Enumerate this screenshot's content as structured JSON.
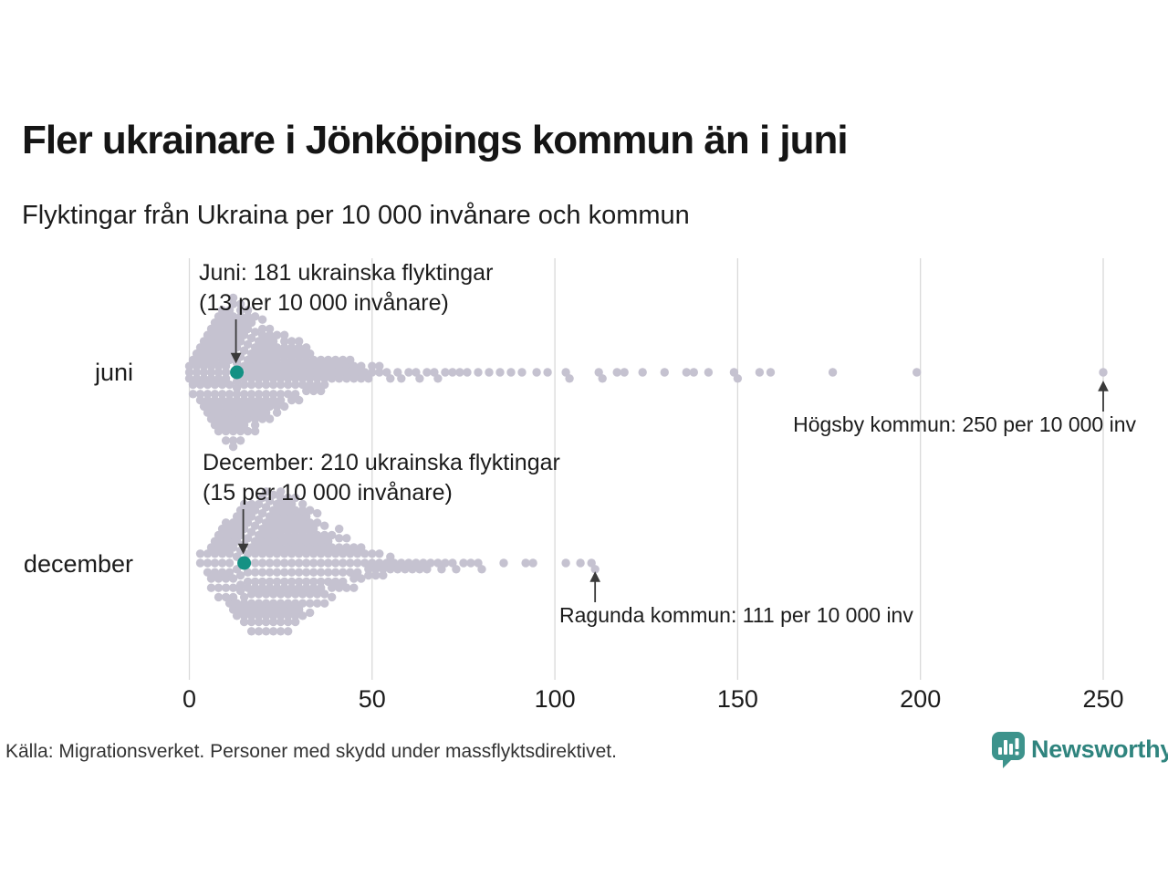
{
  "header": {
    "title": "Fler ukrainare i Jönköpings kommun än i juni",
    "subtitle": "Flyktingar från Ukraina per 10 000 invånare och kommun"
  },
  "chart_data": {
    "type": "beeswarm",
    "unit": "flyktingar per 10 000 invånare",
    "xlim": [
      0,
      250
    ],
    "x_ticks": [
      0,
      50,
      100,
      150,
      200,
      250
    ],
    "grid": true,
    "rows": [
      {
        "label": "juni",
        "points_value_count": [
          [
            0,
            3
          ],
          [
            1,
            3
          ],
          [
            2,
            4
          ],
          [
            3,
            5
          ],
          [
            4,
            6
          ],
          [
            5,
            7
          ],
          [
            6,
            8
          ],
          [
            7,
            9
          ],
          [
            8,
            10
          ],
          [
            9,
            10
          ],
          [
            10,
            11
          ],
          [
            11,
            10
          ],
          [
            12,
            11
          ],
          [
            13,
            10
          ],
          [
            14,
            10
          ],
          [
            15,
            10
          ],
          [
            16,
            9
          ],
          [
            17,
            9
          ],
          [
            18,
            9
          ],
          [
            19,
            8
          ],
          [
            20,
            8
          ],
          [
            21,
            8
          ],
          [
            22,
            7
          ],
          [
            23,
            7
          ],
          [
            24,
            6
          ],
          [
            25,
            6
          ],
          [
            26,
            6
          ],
          [
            27,
            5
          ],
          [
            28,
            5
          ],
          [
            29,
            5
          ],
          [
            30,
            5
          ],
          [
            31,
            4
          ],
          [
            32,
            4
          ],
          [
            33,
            4
          ],
          [
            34,
            3
          ],
          [
            35,
            3
          ],
          [
            36,
            3
          ],
          [
            37,
            3
          ],
          [
            38,
            2
          ],
          [
            39,
            2
          ],
          [
            40,
            2
          ],
          [
            41,
            2
          ],
          [
            42,
            2
          ],
          [
            43,
            2
          ],
          [
            44,
            2
          ],
          [
            45,
            2
          ],
          [
            46,
            1
          ],
          [
            47,
            2
          ],
          [
            48,
            1
          ],
          [
            49,
            1
          ],
          [
            50,
            2
          ],
          [
            52,
            2
          ],
          [
            54,
            1
          ],
          [
            55,
            1
          ],
          [
            57,
            1
          ],
          [
            58,
            1
          ],
          [
            60,
            1
          ],
          [
            62,
            1
          ],
          [
            63,
            1
          ],
          [
            65,
            1
          ],
          [
            67,
            1
          ],
          [
            68,
            1
          ],
          [
            70,
            1
          ],
          [
            72,
            1
          ],
          [
            74,
            1
          ],
          [
            76,
            1
          ],
          [
            79,
            1
          ],
          [
            82,
            1
          ],
          [
            85,
            1
          ],
          [
            88,
            1
          ],
          [
            91,
            1
          ],
          [
            95,
            1
          ],
          [
            98,
            1
          ],
          [
            103,
            1
          ],
          [
            104,
            1
          ],
          [
            112,
            1
          ],
          [
            113,
            1
          ],
          [
            117,
            1
          ],
          [
            119,
            1
          ],
          [
            124,
            1
          ],
          [
            130,
            1
          ],
          [
            136,
            1
          ],
          [
            138,
            1
          ],
          [
            142,
            1
          ],
          [
            149,
            1
          ],
          [
            150,
            1
          ],
          [
            156,
            1
          ],
          [
            159,
            1
          ],
          [
            176,
            1
          ],
          [
            199,
            1
          ],
          [
            250,
            1
          ]
        ],
        "highlight": {
          "kommun": "Jönköping",
          "value": 13,
          "refugees": 181,
          "label_lines": [
            "Juni: 181 ukrainska flyktingar",
            "(13 per 10 000 invånare)"
          ]
        },
        "extreme": {
          "kommun": "Högsby",
          "value": 250,
          "label": "Högsby kommun: 250 per 10 000 inv"
        }
      },
      {
        "label": "december",
        "points_value_count": [
          [
            3,
            2
          ],
          [
            5,
            3
          ],
          [
            6,
            3
          ],
          [
            7,
            4
          ],
          [
            8,
            5
          ],
          [
            9,
            5
          ],
          [
            10,
            6
          ],
          [
            11,
            6
          ],
          [
            12,
            7
          ],
          [
            13,
            7
          ],
          [
            14,
            8
          ],
          [
            15,
            8
          ],
          [
            16,
            8
          ],
          [
            17,
            9
          ],
          [
            18,
            9
          ],
          [
            19,
            9
          ],
          [
            20,
            10
          ],
          [
            21,
            10
          ],
          [
            22,
            10
          ],
          [
            23,
            10
          ],
          [
            24,
            10
          ],
          [
            25,
            11
          ],
          [
            26,
            10
          ],
          [
            27,
            10
          ],
          [
            28,
            10
          ],
          [
            29,
            9
          ],
          [
            30,
            9
          ],
          [
            31,
            8
          ],
          [
            32,
            8
          ],
          [
            33,
            7
          ],
          [
            34,
            7
          ],
          [
            35,
            6
          ],
          [
            36,
            6
          ],
          [
            37,
            5
          ],
          [
            38,
            5
          ],
          [
            39,
            4
          ],
          [
            40,
            4
          ],
          [
            41,
            4
          ],
          [
            42,
            4
          ],
          [
            43,
            3
          ],
          [
            44,
            3
          ],
          [
            45,
            3
          ],
          [
            46,
            3
          ],
          [
            47,
            2
          ],
          [
            48,
            2
          ],
          [
            49,
            2
          ],
          [
            50,
            2
          ],
          [
            51,
            2
          ],
          [
            52,
            2
          ],
          [
            53,
            2
          ],
          [
            54,
            1
          ],
          [
            55,
            2
          ],
          [
            56,
            1
          ],
          [
            57,
            1
          ],
          [
            58,
            1
          ],
          [
            59,
            1
          ],
          [
            60,
            1
          ],
          [
            61,
            1
          ],
          [
            62,
            1
          ],
          [
            63,
            1
          ],
          [
            64,
            1
          ],
          [
            65,
            1
          ],
          [
            66,
            1
          ],
          [
            68,
            1
          ],
          [
            69,
            1
          ],
          [
            70,
            1
          ],
          [
            72,
            1
          ],
          [
            73,
            1
          ],
          [
            75,
            1
          ],
          [
            77,
            1
          ],
          [
            79,
            1
          ],
          [
            80,
            1
          ],
          [
            86,
            1
          ],
          [
            92,
            1
          ],
          [
            94,
            1
          ],
          [
            103,
            1
          ],
          [
            107,
            1
          ],
          [
            110,
            1
          ],
          [
            111,
            1
          ]
        ],
        "highlight": {
          "kommun": "Jönköping",
          "value": 15,
          "refugees": 210,
          "label_lines": [
            "December: 210 ukrainska flyktingar",
            "(15 per 10 000 invånare)"
          ]
        },
        "extreme": {
          "kommun": "Ragunda",
          "value": 111,
          "label": "Ragunda kommun: 111 per 10 000 inv"
        }
      }
    ],
    "colors": {
      "dot": "#c5c2d0",
      "highlight": "#149184",
      "gridline": "#d9d9d9",
      "arrow": "#3a3a3a"
    }
  },
  "footer": {
    "source": "Källa: Migrationsverket. Personer med skydd under massflyktsdirektivet."
  },
  "logo": {
    "text": "Newsworthy",
    "icon": "newsworthy-speech-bubble-chart-icon",
    "text_color": "#2f847e",
    "icon_color": "#3d938c"
  }
}
